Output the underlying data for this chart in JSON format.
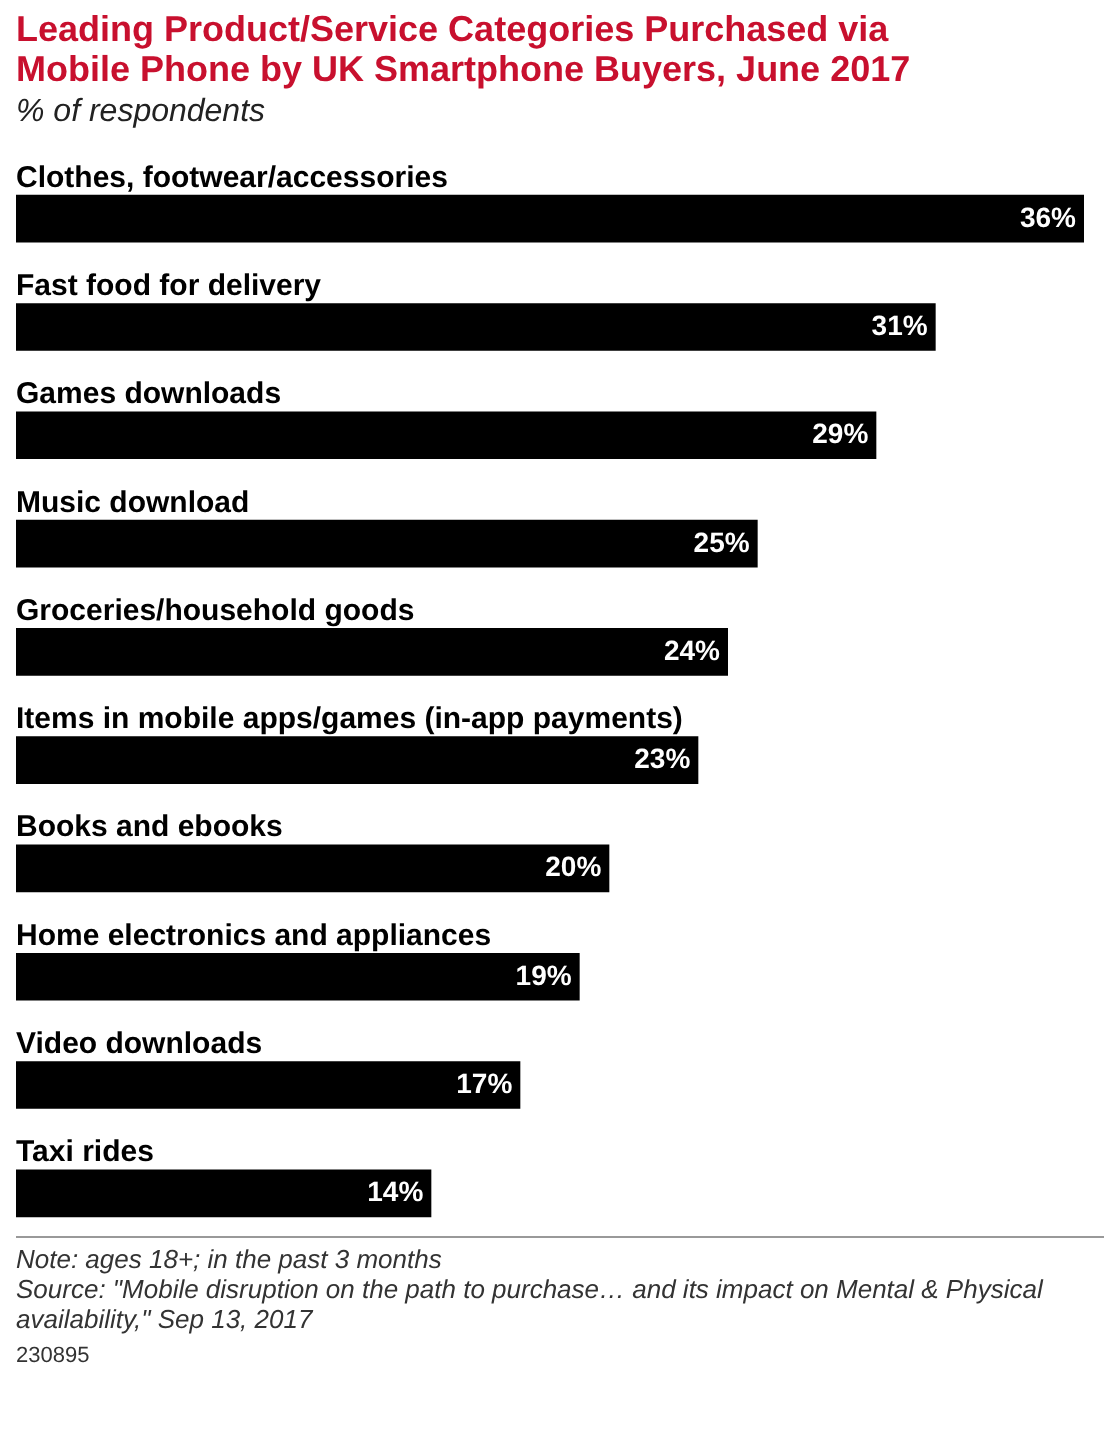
{
  "chart_data": {
    "type": "bar",
    "orientation": "horizontal",
    "title": "Leading Product/Service Categories Purchased via Mobile Phone by UK Smartphone Buyers, June 2017",
    "subtitle": "% of respondents",
    "categories": [
      "Clothes, footwear/accessories",
      "Fast food for delivery",
      "Games downloads",
      "Music download",
      "Groceries/household goods",
      "Items in mobile apps/games (in-app payments)",
      "Books and ebooks",
      "Home electronics and appliances",
      "Video downloads",
      "Taxi rides"
    ],
    "values": [
      36,
      31,
      29,
      25,
      24,
      23,
      20,
      19,
      17,
      14
    ],
    "value_labels": [
      "36%",
      "31%",
      "29%",
      "25%",
      "24%",
      "23%",
      "20%",
      "19%",
      "17%",
      "14%"
    ],
    "color": "#000000",
    "annotations": [
      "Note: ages 18+; in the past 3 months",
      "Source: \"Mobile disruption on the path to purchase… and its impact on Mental & Physical availability,\" Sep 13, 2017",
      "230895"
    ]
  }
}
